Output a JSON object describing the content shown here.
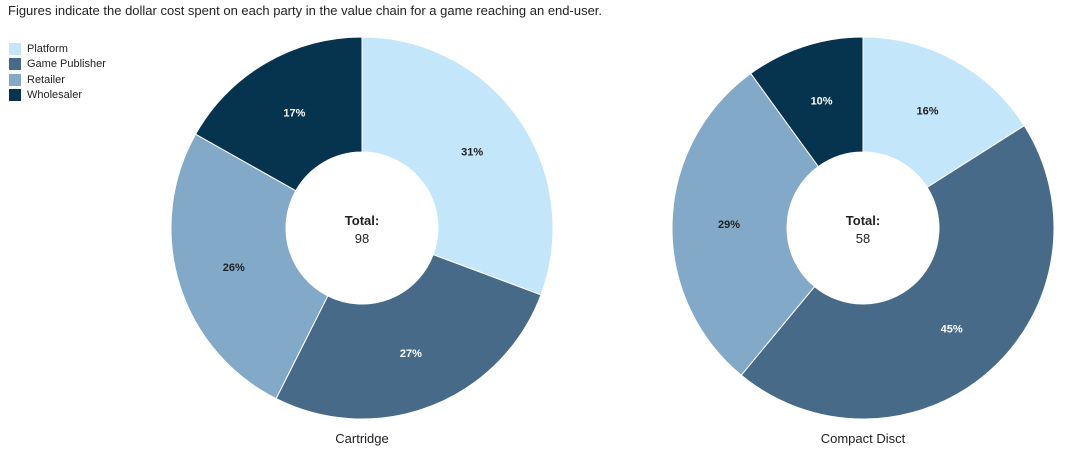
{
  "subtitle": "Figures indicate the dollar cost spent on each party in the value chain for a game reaching an end-user.",
  "legend": [
    {
      "label": "Platform",
      "color": "#c3e6fb"
    },
    {
      "label": "Game Publisher",
      "color": "#466a87"
    },
    {
      "label": "Retailer",
      "color": "#82a9c7"
    },
    {
      "label": "Wholesaler",
      "color": "#06344e"
    }
  ],
  "chart_data": [
    {
      "type": "pie",
      "title": "Cartridge",
      "center_label": "Total:",
      "total": 98,
      "labels": [
        "Platform",
        "Game Publisher",
        "Retailer",
        "Wholesaler"
      ],
      "values": [
        31,
        27,
        26,
        17
      ],
      "value_labels": [
        "31%",
        "27%",
        "26%",
        "17%"
      ],
      "donut": true,
      "legend_position": "top-left"
    },
    {
      "type": "pie",
      "title": "Compact Disct",
      "center_label": "Total:",
      "total": 58,
      "labels": [
        "Platform",
        "Game Publisher",
        "Retailer",
        "Wholesaler"
      ],
      "values": [
        16,
        45,
        29,
        10
      ],
      "value_labels": [
        "16%",
        "45%",
        "29%",
        "10%"
      ],
      "donut": true,
      "legend_position": "top-left"
    }
  ]
}
